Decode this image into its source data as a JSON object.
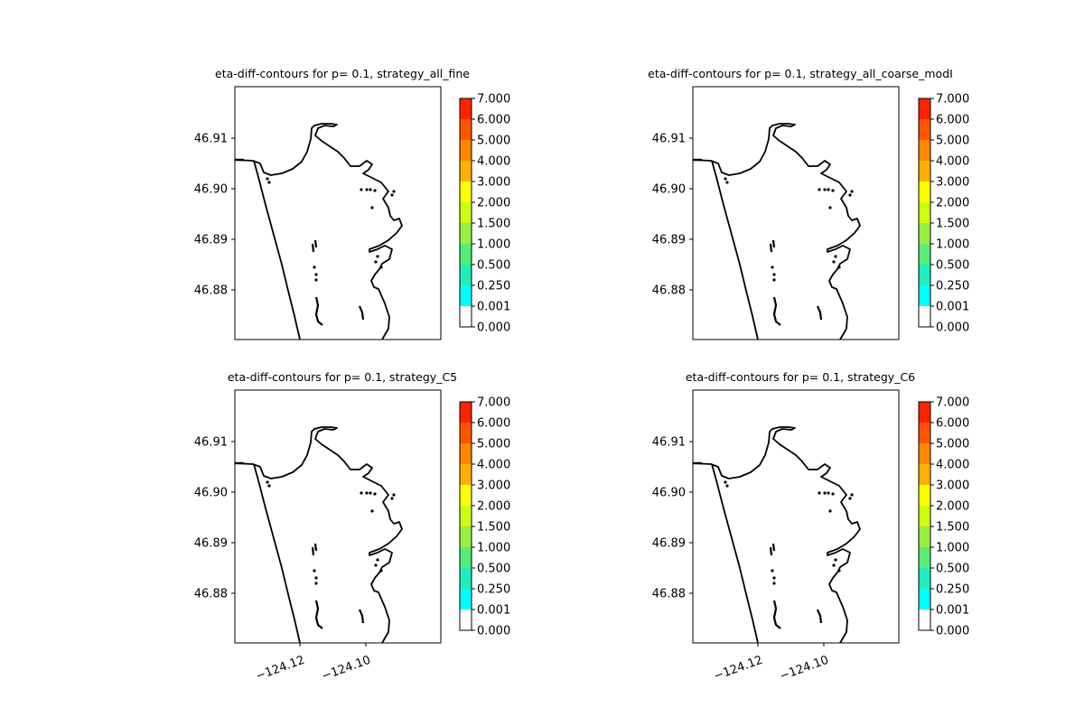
{
  "figure": {
    "background": "#ffffff"
  },
  "chart_data": [
    {
      "type": "contour-map",
      "title": "eta-diff-contours for p= 0.1, strategy_all_fine",
      "y_ticks": [
        "46.91",
        "46.90",
        "46.89",
        "46.88"
      ],
      "y_tick_values": [
        46.91,
        46.9,
        46.89,
        46.88
      ],
      "x_ticks": [],
      "colorbar": {
        "levels": [
          "0.000",
          "0.001",
          "0.250",
          "0.500",
          "1.000",
          "1.500",
          "2.000",
          "3.000",
          "4.000",
          "5.000",
          "6.000",
          "7.000"
        ],
        "colors": [
          "#ffffff",
          "#00ffff",
          "#22eebb",
          "#55ee77",
          "#99ee44",
          "#ccff11",
          "#ffff00",
          "#ffb000",
          "#ff8800",
          "#ff5500",
          "#ff2200",
          "#ff0000"
        ]
      }
    },
    {
      "type": "contour-map",
      "title": "eta-diff-contours for p= 0.1, strategy_all_coarse_modI",
      "y_ticks": [
        "46.91",
        "46.90",
        "46.89",
        "46.88"
      ],
      "y_tick_values": [
        46.91,
        46.9,
        46.89,
        46.88
      ],
      "x_ticks": [],
      "colorbar": {
        "levels": [
          "0.000",
          "0.001",
          "0.250",
          "0.500",
          "1.000",
          "1.500",
          "2.000",
          "3.000",
          "4.000",
          "5.000",
          "6.000",
          "7.000"
        ],
        "colors": [
          "#ffffff",
          "#00ffff",
          "#22eebb",
          "#55ee77",
          "#99ee44",
          "#ccff11",
          "#ffff00",
          "#ffb000",
          "#ff8800",
          "#ff5500",
          "#ff2200",
          "#ff0000"
        ]
      }
    },
    {
      "type": "contour-map",
      "title": "eta-diff-contours for p= 0.1, strategy_C5",
      "y_ticks": [
        "46.91",
        "46.90",
        "46.89",
        "46.88"
      ],
      "y_tick_values": [
        46.91,
        46.9,
        46.89,
        46.88
      ],
      "x_ticks": [
        "−124.12",
        "−124.10"
      ],
      "x_tick_values": [
        -124.12,
        -124.1
      ],
      "colorbar": {
        "levels": [
          "0.000",
          "0.001",
          "0.250",
          "0.500",
          "1.000",
          "1.500",
          "2.000",
          "3.000",
          "4.000",
          "5.000",
          "6.000",
          "7.000"
        ],
        "colors": [
          "#ffffff",
          "#00ffff",
          "#22eebb",
          "#55ee77",
          "#99ee44",
          "#ccff11",
          "#ffff00",
          "#ffb000",
          "#ff8800",
          "#ff5500",
          "#ff2200",
          "#ff0000"
        ]
      }
    },
    {
      "type": "contour-map",
      "title": "eta-diff-contours for p= 0.1, strategy_C6",
      "y_ticks": [
        "46.91",
        "46.90",
        "46.89",
        "46.88"
      ],
      "y_tick_values": [
        46.91,
        46.9,
        46.89,
        46.88
      ],
      "x_ticks": [
        "−124.12",
        "−124.10"
      ],
      "x_tick_values": [
        -124.12,
        -124.1
      ],
      "colorbar": {
        "levels": [
          "0.000",
          "0.001",
          "0.250",
          "0.500",
          "1.000",
          "1.500",
          "2.000",
          "3.000",
          "4.000",
          "5.000",
          "6.000",
          "7.000"
        ],
        "colors": [
          "#ffffff",
          "#00ffff",
          "#22eebb",
          "#55ee77",
          "#99ee44",
          "#ccff11",
          "#ffff00",
          "#ffb000",
          "#ff8800",
          "#ff5500",
          "#ff2200",
          "#ff0000"
        ]
      }
    }
  ]
}
